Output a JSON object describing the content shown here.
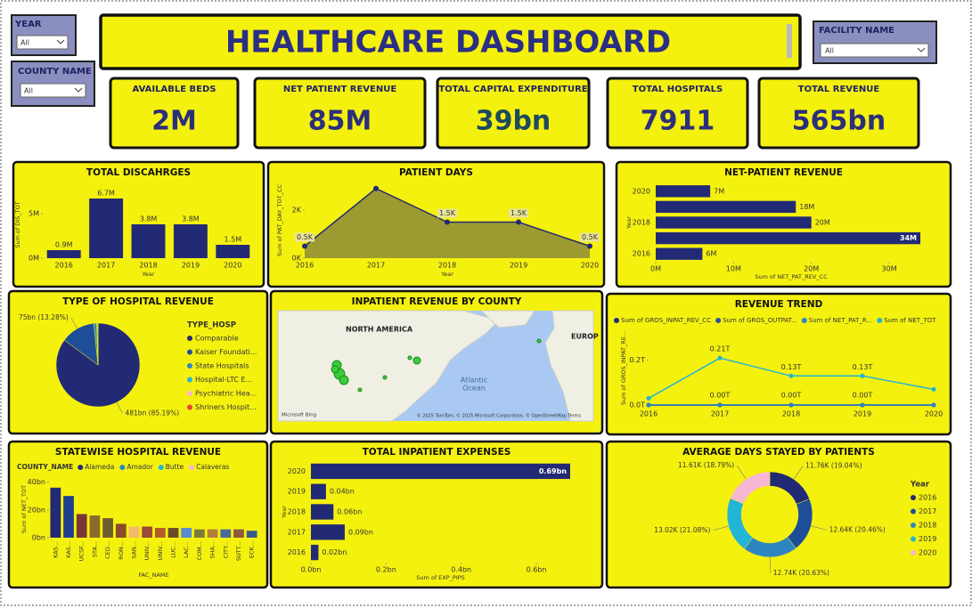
{
  "header": {
    "title": "HEALTHCARE DASHBOARD"
  },
  "slicers": [
    {
      "label": "YEAR",
      "value": "All"
    },
    {
      "label": "COUNTY NAME",
      "value": "All"
    },
    {
      "label": "FACILITY NAME",
      "value": "All"
    }
  ],
  "kpis": [
    {
      "label": "AVAILABLE BEDS",
      "value": "2M"
    },
    {
      "label": "NET PATIENT REVENUE",
      "value": "85M"
    },
    {
      "label": "TOTAL CAPITAL EXPENDITURE",
      "value": "39bn"
    },
    {
      "label": "TOTAL HOSPITALS",
      "value": "7911"
    },
    {
      "label": "TOTAL REVENUE",
      "value": "565bn"
    }
  ],
  "map": {
    "title": "INPATIENT REVENUE BY COUNTY",
    "labels": [
      "NORTH AMERICA",
      "EUROP",
      "Atlantic",
      "Ocean"
    ],
    "logo": "Microsoft Bing",
    "attribution": "© 2025 TomTom, © 2025 Microsoft Corporation, © OpenStreetMap  Terms"
  },
  "chart_data": [
    {
      "type": "bar",
      "title": "TOTAL DISCAHRGES",
      "categories": [
        "2016",
        "2017",
        "2018",
        "2019",
        "2020"
      ],
      "values": [
        0.9,
        6.7,
        3.8,
        3.8,
        1.5
      ],
      "value_labels": [
        "0.9M",
        "6.7M",
        "3.8M",
        "3.8M",
        "1.5M"
      ],
      "color": "#232a75",
      "ylim": [
        0,
        7.5
      ],
      "yticks": [
        {
          "value": 0,
          "label": "0M"
        },
        {
          "value": 5,
          "label": "5M"
        }
      ],
      "xlabel": "Year",
      "ylabel": "Sum of DIS_TOT"
    },
    {
      "type": "area",
      "title": "PATIENT DAYS",
      "categories": [
        "2016",
        "2017",
        "2018",
        "2019",
        "2020"
      ],
      "values": [
        0.5,
        2.9,
        1.5,
        1.5,
        0.5
      ],
      "value_labels": [
        "0.5K",
        null,
        "1.5K",
        "1.5K",
        "0.5K"
      ],
      "color": "#232a75",
      "fill": "#9c9a30",
      "ylim": [
        0,
        3.15
      ],
      "yticks": [
        {
          "value": 0,
          "label": "0K"
        },
        {
          "value": 2,
          "label": "2K"
        }
      ],
      "xlabel": "Year",
      "ylabel": "Sum of PAT_DAY_TOT_CC"
    },
    {
      "type": "bar",
      "horizontal": true,
      "title": "NET-PATIENT REVENUE",
      "categories": [
        "2020",
        null,
        "2018",
        null,
        "2016"
      ],
      "values": [
        7,
        18,
        20,
        34,
        6
      ],
      "value_labels": [
        "7M",
        "18M",
        "20M",
        "34M",
        "6M"
      ],
      "color": "#232a75",
      "xlim": [
        0,
        34.8
      ],
      "xticks": [
        {
          "value": 0,
          "label": "0M"
        },
        {
          "value": 10,
          "label": "10M"
        },
        {
          "value": 20,
          "label": "20M"
        },
        {
          "value": 30,
          "label": "30M"
        }
      ],
      "xlabel": "Sum of NET_PAT_REV_CC",
      "ylabel": "Year"
    },
    {
      "type": "pie",
      "title": "TYPE OF HOSPITAL REVENUE",
      "legend_title": "TYPE_HOSP",
      "categories": [
        "Comparable",
        "Kaiser Foundati...",
        "State Hospitals",
        "Hospital-LTC E...",
        "Psychiatric Hea...",
        "Shriners Hospit..."
      ],
      "values": [
        481,
        75,
        6,
        2,
        0.8,
        0.2
      ],
      "value_labels": [
        "481bn (85.19%)",
        "75bn (13.28%)",
        null,
        null,
        null,
        null
      ],
      "colors": [
        "#232a75",
        "#1f4e99",
        "#2e86c1",
        "#22b5d6",
        "#f7b6d2",
        "#e8473a"
      ]
    },
    {
      "type": "line",
      "title": "REVENUE TREND",
      "categories": [
        "2016",
        "2017",
        "2018",
        "2019",
        "2020"
      ],
      "ylim": [
        0,
        0.33
      ],
      "yticks": [
        {
          "value": 0,
          "label": "0.0T"
        },
        {
          "value": 0.2,
          "label": "0.2T"
        }
      ],
      "ylabel": "Sum of GROS_INPAT_RE...",
      "series": [
        {
          "name": "Sum of GROS_INPAT_REV_CC",
          "color": "#232a75",
          "values": [
            0,
            0,
            0,
            0,
            0
          ],
          "value_labels": [
            null,
            "0.00T",
            "0.00T",
            "0.00T",
            null
          ]
        },
        {
          "name": "Sum of GROS_OUTPAT...",
          "color": "#2a4fa0",
          "values": [
            0,
            0,
            0,
            0,
            0
          ]
        },
        {
          "name": "Sum of NET_PAT_R...",
          "color": "#2e86c1",
          "values": [
            0,
            0,
            0,
            0,
            0
          ]
        },
        {
          "name": "Sum of NET_TOT",
          "color": "#22b5d6",
          "values": [
            0.03,
            0.21,
            0.13,
            0.13,
            0.07
          ],
          "value_labels": [
            null,
            "0.21T",
            "0.13T",
            "0.13T",
            null
          ]
        }
      ]
    },
    {
      "type": "bar",
      "title": "STATEWISE HOSPITAL REVENUE",
      "legend_title": "COUNTY_NAME",
      "legend": [
        {
          "name": "Alameda",
          "color": "#232a75"
        },
        {
          "name": "Amador",
          "color": "#2e86c1"
        },
        {
          "name": "Butte",
          "color": "#22b5d6"
        },
        {
          "name": "Calaveras",
          "color": "#f7b6d2"
        }
      ],
      "categories": [
        "KAS...",
        "KAS...",
        "UCSF...",
        "STA...",
        "CED...",
        "RON...",
        "SAN...",
        "UNIV...",
        "UNIV...",
        "LUC...",
        "LAC...",
        "COM...",
        "SHA...",
        "CITY...",
        "SUTT...",
        "ECK..."
      ],
      "values": [
        36,
        30,
        17,
        16,
        14,
        10,
        8,
        8,
        7,
        7,
        7,
        6,
        6,
        6,
        6,
        5
      ],
      "colors": [
        "#232a75",
        "#1f3f8f",
        "#7a3535",
        "#8c6a2a",
        "#6d5c2c",
        "#8a4b2a",
        "#f2b870",
        "#9a4a3a",
        "#b35a2a",
        "#6b4a2a",
        "#5a8ad0",
        "#7a7a3a",
        "#b0803a",
        "#4a6a9a",
        "#8a5a3a",
        "#3a5a8a"
      ],
      "ylim": [
        0,
        41
      ],
      "yticks": [
        {
          "value": 0,
          "label": "0bn"
        },
        {
          "value": 20,
          "label": "20bn"
        },
        {
          "value": 40,
          "label": "40bn"
        }
      ],
      "xlabel": "FAC_NAME",
      "ylabel": "Sum of NET_TOT"
    },
    {
      "type": "bar",
      "horizontal": true,
      "title": "TOTAL INPATIENT EXPENSES",
      "categories": [
        "2020",
        "2019",
        "2018",
        "2017",
        "2016"
      ],
      "values": [
        0.69,
        0.04,
        0.06,
        0.09,
        0.02
      ],
      "value_labels": [
        "0.69bn",
        "0.04bn",
        "0.06bn",
        "0.09bn",
        "0.02bn"
      ],
      "color": "#232a75",
      "xlim": [
        0,
        0.69
      ],
      "xticks": [
        {
          "value": 0,
          "label": "0.0bn"
        },
        {
          "value": 0.2,
          "label": "0.2bn"
        },
        {
          "value": 0.4,
          "label": "0.4bn"
        },
        {
          "value": 0.6,
          "label": "0.6bn"
        }
      ],
      "xlabel": "Sum of EXP_PIPS",
      "ylabel": "Year"
    },
    {
      "type": "donut",
      "title": "AVERAGE DAYS STAYED BY PATIENTS",
      "legend_title": "Year",
      "categories": [
        "2016",
        "2017",
        "2018",
        "2019",
        "2020"
      ],
      "values": [
        11.76,
        12.64,
        12.74,
        13.02,
        11.61
      ],
      "value_labels": [
        "11.76K (19.04%)",
        "12.64K (20.46%)",
        "12.74K (20.63%)",
        "13.02K (21.08%)",
        "11.61K (18.79%)"
      ],
      "colors": [
        "#232a75",
        "#1f4e99",
        "#2e86c1",
        "#22b5d6",
        "#f7b6d2"
      ]
    }
  ]
}
